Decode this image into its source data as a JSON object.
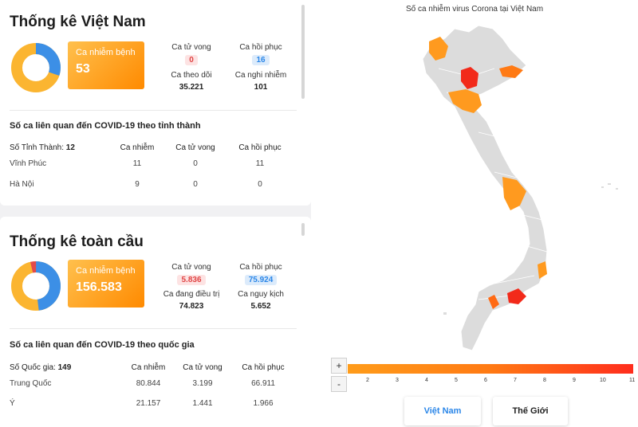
{
  "vietnam": {
    "title": "Thống kê Việt Nam",
    "cases_label": "Ca nhiễm bệnh",
    "cases_value": "53",
    "deaths_label": "Ca tử vong",
    "deaths_value": "0",
    "recovered_label": "Ca hồi phục",
    "recovered_value": "16",
    "monitoring_label": "Ca theo dõi",
    "monitoring_value": "35.221",
    "suspected_label": "Ca nghi nhiễm",
    "suspected_value": "101",
    "table_title": "Số ca liên quan đến COVID-19 theo tỉnh thành",
    "count_label": "Số Tỉnh Thành:",
    "count_value": "12",
    "col_cases": "Ca nhiễm",
    "col_deaths": "Ca tử vong",
    "col_recovered": "Ca hồi phục",
    "rows": [
      {
        "name": "Vĩnh Phúc",
        "cases": "11",
        "deaths": "0",
        "recovered": "11"
      },
      {
        "name": "Hà Nội",
        "cases": "9",
        "deaths": "0",
        "recovered": "0"
      }
    ]
  },
  "global": {
    "title": "Thống kê toàn cầu",
    "cases_label": "Ca nhiễm bệnh",
    "cases_value": "156.583",
    "deaths_label": "Ca tử vong",
    "deaths_value": "5.836",
    "recovered_label": "Ca hồi phục",
    "recovered_value": "75.924",
    "treating_label": "Ca đang điều trị",
    "treating_value": "74.823",
    "critical_label": "Ca nguy kịch",
    "critical_value": "5.652",
    "table_title": "Số ca liên quan đến COVID-19 theo quốc gia",
    "count_label": "Số Quốc gia:",
    "count_value": "149",
    "col_cases": "Ca nhiễm",
    "col_deaths": "Ca tử vong",
    "col_recovered": "Ca hồi phục",
    "rows": [
      {
        "name": "Trung Quốc",
        "cases": "80.844",
        "deaths": "3.199",
        "recovered": "66.911"
      },
      {
        "name": "Ý",
        "cases": "21.157",
        "deaths": "1.441",
        "recovered": "1.966"
      }
    ]
  },
  "map": {
    "title": "Số ca nhiễm virus Corona tại Việt Nam",
    "zoom_in": "+",
    "zoom_out": "-",
    "scale_ticks": [
      "2",
      "3",
      "4",
      "5",
      "6",
      "7",
      "8",
      "9",
      "10",
      "11"
    ],
    "tab_vietnam": "Việt Nam",
    "tab_world": "Thế Giới"
  },
  "colors": {
    "accent_orange": "#ff9500",
    "donut_yellow": "#fbb531",
    "donut_blue": "#3c8fe6",
    "donut_red": "#e24a4a",
    "map_grey": "#dcdcdc",
    "map_red": "#f22a1a",
    "active_tab": "#2a86e8"
  }
}
